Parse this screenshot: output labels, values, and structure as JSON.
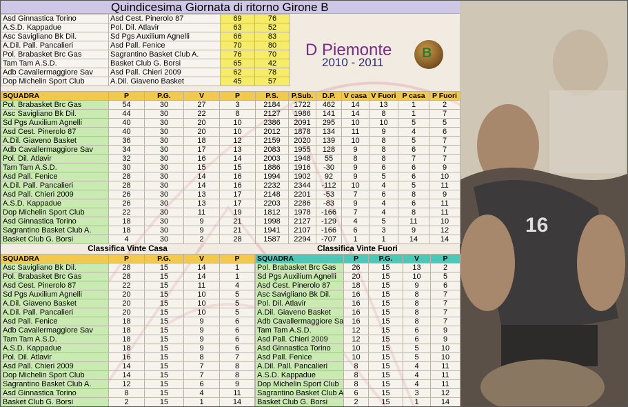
{
  "title": "Quindicesima Giornata di ritorno Girone B",
  "results": [
    {
      "home": "Asd Ginnastica Torino",
      "away": "Asd Cest. Pinerolo 87",
      "home_pts": "69",
      "away_pts": "76"
    },
    {
      "home": "A.S.D. Kappadue",
      "away": "Pol. Dil. Atlavir",
      "home_pts": "63",
      "away_pts": "52"
    },
    {
      "home": "Asc Savigliano Bk Dil.",
      "away": "Sd Pgs Auxilium Agnelli",
      "home_pts": "66",
      "away_pts": "83"
    },
    {
      "home": "A.Dil. Pall. Pancalieri",
      "away": "Asd Pall. Fenice",
      "home_pts": "70",
      "away_pts": "80"
    },
    {
      "home": "Pol. Brabasket Brc Gas",
      "away": "Sagrantino Basket Club A.",
      "home_pts": "76",
      "away_pts": "70"
    },
    {
      "home": "Tam Tam A.S.D.",
      "away": "Basket Club G. Borsi",
      "home_pts": "65",
      "away_pts": "42"
    },
    {
      "home": "Adb Cavallermaggiore Sav",
      "away": "Asd Pall. Chieri 2009",
      "home_pts": "62",
      "away_pts": "78"
    },
    {
      "home": "Dop Michelin Sport Club",
      "away": "A.Dil. Giaveno Basket",
      "home_pts": "45",
      "away_pts": "57"
    }
  ],
  "logo": {
    "main": "D Piemonte",
    "years": "2010 - 2011",
    "ball_letter": "B"
  },
  "standings": {
    "headers": [
      "SQUADRA",
      "P",
      "P.G.",
      "V",
      "P",
      "P.S.",
      "P.Sub.",
      "D.P.",
      "V casa",
      "V Fuori",
      "P casa",
      "P Fuori"
    ],
    "rows": [
      [
        "Pol. Brabasket Brc Gas",
        "54",
        "30",
        "27",
        "3",
        "2184",
        "1722",
        "462",
        "14",
        "13",
        "1",
        "2"
      ],
      [
        "Asc Savigliano Bk Dil.",
        "44",
        "30",
        "22",
        "8",
        "2127",
        "1986",
        "141",
        "14",
        "8",
        "1",
        "7"
      ],
      [
        "Sd Pgs Auxilium Agnelli",
        "40",
        "30",
        "20",
        "10",
        "2386",
        "2091",
        "295",
        "10",
        "10",
        "5",
        "5"
      ],
      [
        "Asd Cest. Pinerolo 87",
        "40",
        "30",
        "20",
        "10",
        "2012",
        "1878",
        "134",
        "11",
        "9",
        "4",
        "6"
      ],
      [
        "A.Dil. Giaveno Basket",
        "36",
        "30",
        "18",
        "12",
        "2159",
        "2020",
        "139",
        "10",
        "8",
        "5",
        "7"
      ],
      [
        "Adb Cavallermaggiore Sav",
        "34",
        "30",
        "17",
        "13",
        "2083",
        "1955",
        "128",
        "9",
        "8",
        "6",
        "7"
      ],
      [
        "Pol. Dil. Atlavir",
        "32",
        "30",
        "16",
        "14",
        "2003",
        "1948",
        "55",
        "8",
        "8",
        "7",
        "7"
      ],
      [
        "Tam Tam A.S.D.",
        "30",
        "30",
        "15",
        "15",
        "1886",
        "1916",
        "-30",
        "9",
        "6",
        "6",
        "9"
      ],
      [
        "Asd Pall. Fenice",
        "28",
        "30",
        "14",
        "16",
        "1994",
        "1902",
        "92",
        "9",
        "5",
        "6",
        "10"
      ],
      [
        "A.Dil. Pall. Pancalieri",
        "28",
        "30",
        "14",
        "16",
        "2232",
        "2344",
        "-112",
        "10",
        "4",
        "5",
        "11"
      ],
      [
        "Asd Pall. Chieri 2009",
        "26",
        "30",
        "13",
        "17",
        "2148",
        "2201",
        "-53",
        "7",
        "6",
        "8",
        "9"
      ],
      [
        "A.S.D. Kappadue",
        "26",
        "30",
        "13",
        "17",
        "2203",
        "2286",
        "-83",
        "9",
        "4",
        "6",
        "11"
      ],
      [
        "Dop Michelin Sport Club",
        "22",
        "30",
        "11",
        "19",
        "1812",
        "1978",
        "-166",
        "7",
        "4",
        "8",
        "11"
      ],
      [
        "Asd Ginnastica Torino",
        "18",
        "30",
        "9",
        "21",
        "1998",
        "2127",
        "-129",
        "4",
        "5",
        "11",
        "10"
      ],
      [
        "Sagrantino Basket Club A.",
        "18",
        "30",
        "9",
        "21",
        "1941",
        "2107",
        "-166",
        "6",
        "3",
        "9",
        "12"
      ],
      [
        "Basket Club G. Borsi",
        "4",
        "30",
        "2",
        "28",
        "1587",
        "2294",
        "-707",
        "1",
        "1",
        "14",
        "14"
      ]
    ]
  },
  "home_table": {
    "title": "Classifica Vinte Casa",
    "headers": [
      "SQUADRA",
      "P",
      "P.G.",
      "V",
      "P"
    ],
    "rows": [
      [
        "Asc Savigliano Bk Dil.",
        "28",
        "15",
        "14",
        "1"
      ],
      [
        "Pol. Brabasket Brc Gas",
        "28",
        "15",
        "14",
        "1"
      ],
      [
        "Asd Cest. Pinerolo 87",
        "22",
        "15",
        "11",
        "4"
      ],
      [
        "Sd Pgs Auxilium Agnelli",
        "20",
        "15",
        "10",
        "5"
      ],
      [
        "A.Dil. Giaveno Basket",
        "20",
        "15",
        "10",
        "5"
      ],
      [
        "A.Dil. Pall. Pancalieri",
        "20",
        "15",
        "10",
        "5"
      ],
      [
        "Asd Pall. Fenice",
        "18",
        "15",
        "9",
        "6"
      ],
      [
        "Adb Cavallermaggiore Sav",
        "18",
        "15",
        "9",
        "6"
      ],
      [
        "Tam Tam A.S.D.",
        "18",
        "15",
        "9",
        "6"
      ],
      [
        "A.S.D. Kappadue",
        "18",
        "15",
        "9",
        "6"
      ],
      [
        "Pol. Dil. Atlavir",
        "16",
        "15",
        "8",
        "7"
      ],
      [
        "Asd Pall. Chieri 2009",
        "14",
        "15",
        "7",
        "8"
      ],
      [
        "Dop Michelin Sport Club",
        "14",
        "15",
        "7",
        "8"
      ],
      [
        "Sagrantino Basket Club A.",
        "12",
        "15",
        "6",
        "9"
      ],
      [
        "Asd Ginnastica Torino",
        "8",
        "15",
        "4",
        "11"
      ],
      [
        "Basket Club G. Borsi",
        "2",
        "15",
        "1",
        "14"
      ]
    ]
  },
  "away_table": {
    "title": "Classifica Vinte Fuori",
    "headers": [
      "SQUADRA",
      "P",
      "P.G.",
      "V",
      "P"
    ],
    "rows": [
      [
        "Pol. Brabasket Brc Gas",
        "26",
        "15",
        "13",
        "2"
      ],
      [
        "Sd Pgs Auxilium Agnelli",
        "20",
        "15",
        "10",
        "5"
      ],
      [
        "Asd Cest. Pinerolo 87",
        "18",
        "15",
        "9",
        "6"
      ],
      [
        "Asc Savigliano Bk Dil.",
        "16",
        "15",
        "8",
        "7"
      ],
      [
        "Pol. Dil. Atlavir",
        "16",
        "15",
        "8",
        "7"
      ],
      [
        "A.Dil. Giaveno Basket",
        "16",
        "15",
        "8",
        "7"
      ],
      [
        "Adb Cavallermaggiore Sav",
        "16",
        "15",
        "8",
        "7"
      ],
      [
        "Tam Tam A.S.D.",
        "12",
        "15",
        "6",
        "9"
      ],
      [
        "Asd Pall. Chieri 2009",
        "12",
        "15",
        "6",
        "9"
      ],
      [
        "Asd Ginnastica Torino",
        "10",
        "15",
        "5",
        "10"
      ],
      [
        "Asd Pall. Fenice",
        "10",
        "15",
        "5",
        "10"
      ],
      [
        "A.Dil. Pall. Pancalieri",
        "8",
        "15",
        "4",
        "11"
      ],
      [
        "A.S.D. Kappadue",
        "8",
        "15",
        "4",
        "11"
      ],
      [
        "Dop Michelin Sport Club",
        "8",
        "15",
        "4",
        "11"
      ],
      [
        "Sagrantino Basket Club A.",
        "6",
        "15",
        "3",
        "12"
      ],
      [
        "Basket Club G. Borsi",
        "2",
        "15",
        "1",
        "14"
      ]
    ]
  },
  "photo": {
    "subject": "basketball player photo",
    "jersey_number": "16"
  }
}
